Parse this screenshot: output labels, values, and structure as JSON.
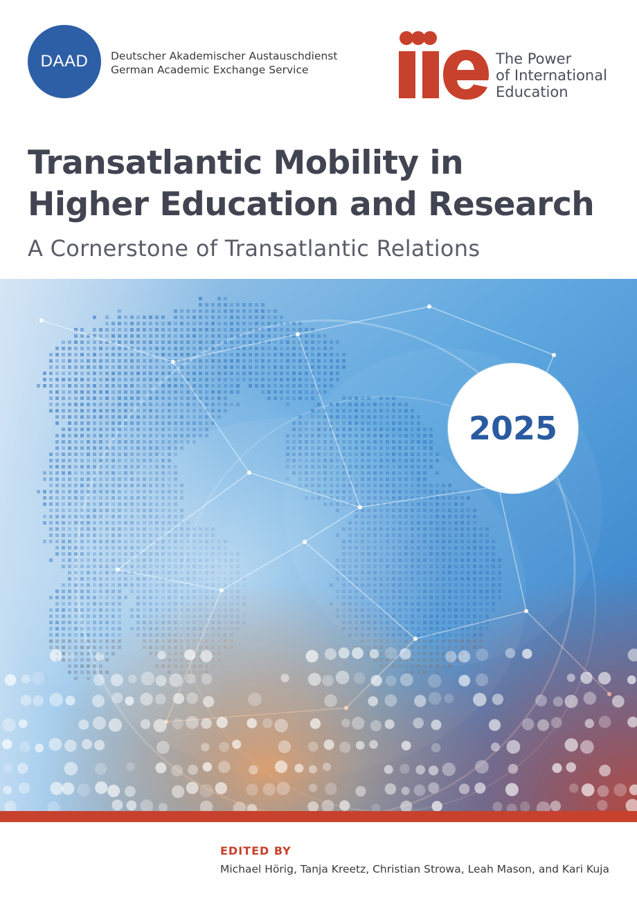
{
  "header": {
    "daad": {
      "logo_text": "DAAD",
      "name_de": "Deutscher Akademischer Austauschdienst",
      "name_en": "German Academic Exchange Service",
      "color": "#2d5fa6"
    },
    "iie": {
      "logo_text": "iie",
      "tagline": [
        "The Power",
        "of International",
        "Education"
      ],
      "color": "#c8412c"
    }
  },
  "cover": {
    "title_lines": [
      "Transatlantic Mobility in",
      "Higher Education and Research"
    ],
    "subtitle": "A Cornerstone of Transatlantic Relations",
    "year": "2025",
    "image": "globe-network-illustration"
  },
  "footer": {
    "edited_label": "EDITED BY",
    "editors": "Michael Hörig, Tanja Kreetz, Christian Strowa, Leah Mason, and Kari Kuja"
  }
}
